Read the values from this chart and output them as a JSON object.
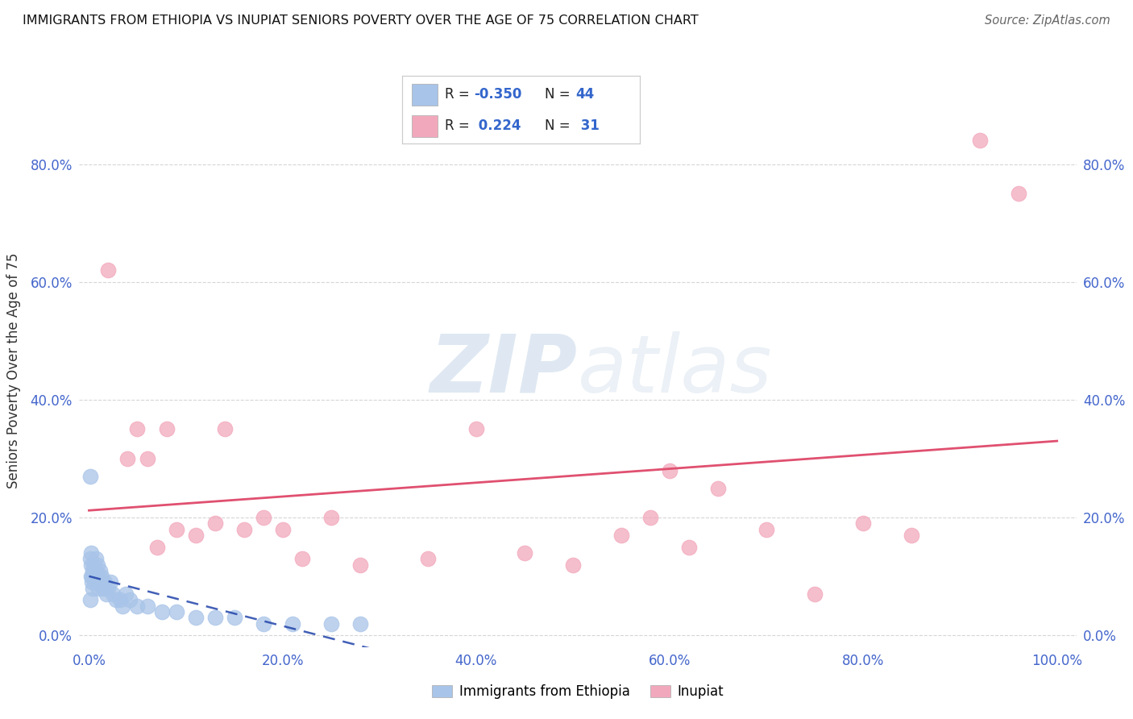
{
  "title": "IMMIGRANTS FROM ETHIOPIA VS INUPIAT SENIORS POVERTY OVER THE AGE OF 75 CORRELATION CHART",
  "source": "Source: ZipAtlas.com",
  "ylabel": "Seniors Poverty Over the Age of 75",
  "xlim": [
    -0.01,
    1.02
  ],
  "ylim": [
    -0.02,
    0.92
  ],
  "xticks": [
    0.0,
    0.2,
    0.4,
    0.6,
    0.8,
    1.0
  ],
  "xtick_labels": [
    "0.0%",
    "20.0%",
    "40.0%",
    "60.0%",
    "80.0%",
    "100.0%"
  ],
  "ytick_labels": [
    "0.0%",
    "20.0%",
    "40.0%",
    "60.0%",
    "80.0%"
  ],
  "yticks": [
    0.0,
    0.2,
    0.4,
    0.6,
    0.8
  ],
  "legend1_label": "Immigrants from Ethiopia",
  "legend2_label": "Inupiat",
  "R1": "-0.350",
  "N1": "44",
  "R2": "0.224",
  "N2": "31",
  "blue_color": "#a8c4e8",
  "pink_color": "#f2a8bc",
  "blue_line_color": "#2244aa",
  "pink_line_color": "#e05070",
  "watermark_zip": "ZIP",
  "watermark_atlas": "atlas",
  "blue_scatter_x": [
    0.001,
    0.002,
    0.002,
    0.003,
    0.003,
    0.004,
    0.004,
    0.005,
    0.005,
    0.006,
    0.007,
    0.007,
    0.008,
    0.009,
    0.01,
    0.01,
    0.011,
    0.012,
    0.013,
    0.015,
    0.016,
    0.018,
    0.02,
    0.022,
    0.025,
    0.028,
    0.032,
    0.035,
    0.038,
    0.042,
    0.05,
    0.06,
    0.075,
    0.09,
    0.11,
    0.13,
    0.15,
    0.18,
    0.21,
    0.25,
    0.28,
    0.001,
    0.001,
    0.002
  ],
  "blue_scatter_y": [
    0.13,
    0.12,
    0.1,
    0.1,
    0.09,
    0.11,
    0.08,
    0.12,
    0.1,
    0.09,
    0.11,
    0.13,
    0.09,
    0.12,
    0.1,
    0.08,
    0.11,
    0.09,
    0.1,
    0.08,
    0.09,
    0.07,
    0.08,
    0.09,
    0.07,
    0.06,
    0.06,
    0.05,
    0.07,
    0.06,
    0.05,
    0.05,
    0.04,
    0.04,
    0.03,
    0.03,
    0.03,
    0.02,
    0.02,
    0.02,
    0.02,
    0.27,
    0.06,
    0.14
  ],
  "pink_scatter_x": [
    0.02,
    0.04,
    0.05,
    0.06,
    0.07,
    0.08,
    0.09,
    0.11,
    0.13,
    0.14,
    0.16,
    0.18,
    0.2,
    0.22,
    0.25,
    0.28,
    0.35,
    0.4,
    0.45,
    0.5,
    0.55,
    0.58,
    0.6,
    0.62,
    0.65,
    0.7,
    0.75,
    0.8,
    0.85,
    0.92,
    0.96
  ],
  "pink_scatter_y": [
    0.62,
    0.3,
    0.35,
    0.3,
    0.15,
    0.35,
    0.18,
    0.17,
    0.19,
    0.35,
    0.18,
    0.2,
    0.18,
    0.13,
    0.2,
    0.12,
    0.13,
    0.35,
    0.14,
    0.12,
    0.17,
    0.2,
    0.28,
    0.15,
    0.25,
    0.18,
    0.07,
    0.19,
    0.17,
    0.84,
    0.75
  ],
  "pink_line_start_y": 0.222,
  "pink_line_end_y": 0.337,
  "blue_line_start_y": 0.135,
  "blue_line_end_y": -0.02
}
